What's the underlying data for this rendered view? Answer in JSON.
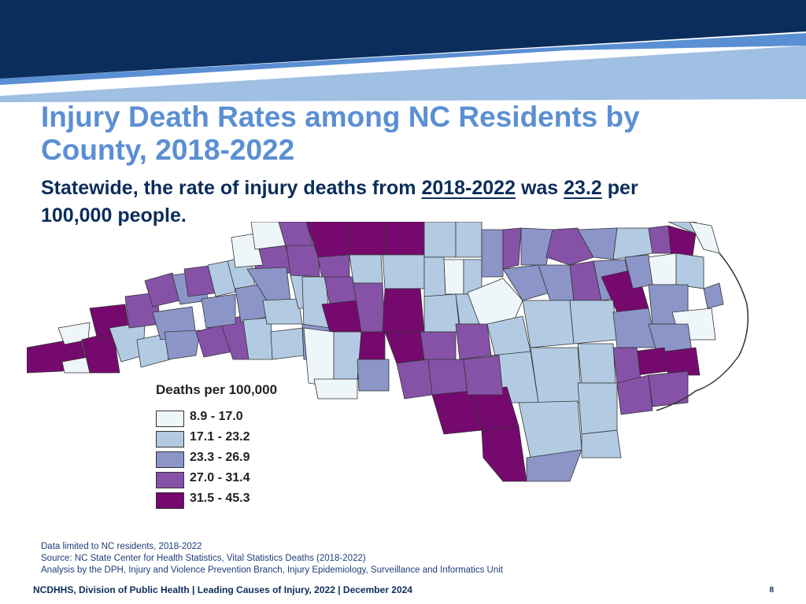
{
  "slide": {
    "title_line1": "Injury Death Rates among NC Residents by",
    "title_line2": "County, 2018-2022",
    "subtitle_prefix": "Statewide, the rate of injury deaths from ",
    "subtitle_period": "2018-2022",
    "subtitle_mid": " was ",
    "subtitle_rate": "23.2",
    "subtitle_suffix_line1": " per",
    "subtitle_line2": "100,000 people."
  },
  "legend": {
    "title": "Deaths per 100,000",
    "classes": [
      {
        "label": "8.9 - 17.0",
        "color": "#eef6fa"
      },
      {
        "label": "17.1 - 23.2",
        "color": "#b3cbe2"
      },
      {
        "label": "23.3 - 26.9",
        "color": "#8c95c8"
      },
      {
        "label": "27.0 - 31.4",
        "color": "#8552a8"
      },
      {
        "label": "31.5 - 45.3",
        "color": "#76096e"
      }
    ]
  },
  "notes": {
    "line1": "Data limited to NC residents, 2018-2022",
    "line2": "Source: NC State Center for Health Statistics, Vital Statistics Deaths (2018-2022)",
    "line3": "Analysis by the DPH, Injury and Violence Prevention Branch, Injury Epidemiology, Surveillance and Informatics Unit"
  },
  "footer": {
    "text": "NCDHHS, Division of Public Health | Leading Causes of Injury, 2022 | December 2024",
    "page": "8"
  },
  "colors": {
    "navy": "#0b2d5b",
    "title_blue": "#5b8fd3",
    "banner_light": "#9fbfe3"
  }
}
